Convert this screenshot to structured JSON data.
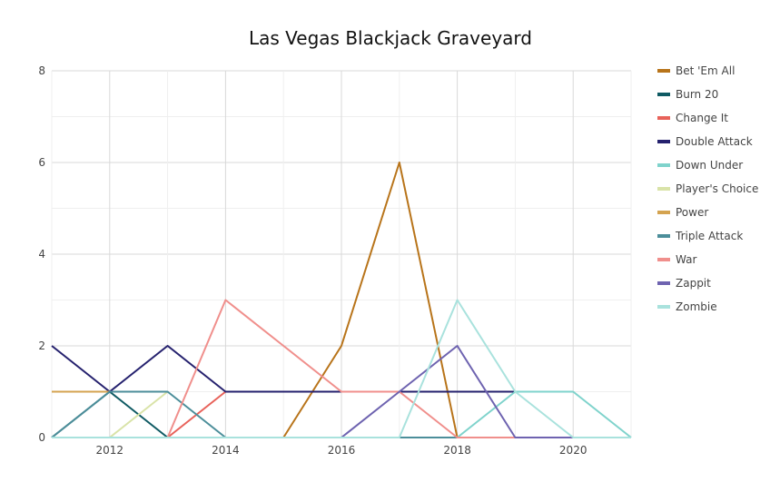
{
  "chart_data": {
    "type": "line",
    "title": "Las Vegas Blackjack Graveyard",
    "xlabel": "",
    "ylabel": "",
    "xlim": [
      2011,
      2021
    ],
    "ylim": [
      0,
      8
    ],
    "x_ticks": [
      "2012",
      "2014",
      "2016",
      "2018",
      "2020"
    ],
    "y_ticks": [
      "0",
      "2",
      "4",
      "6",
      "8"
    ],
    "grid": true,
    "legend_position": "right",
    "x": [
      2011,
      2012,
      2013,
      2014,
      2015,
      2016,
      2017,
      2018,
      2019,
      2020,
      2021
    ],
    "series": [
      {
        "name": "Bet 'Em All",
        "color": "#B8741A",
        "values": [
          null,
          null,
          null,
          null,
          0,
          2,
          6,
          0,
          null,
          null,
          null
        ]
      },
      {
        "name": "Burn 20",
        "color": "#0F5A63",
        "values": [
          0,
          1,
          0,
          null,
          null,
          null,
          null,
          null,
          null,
          null,
          null
        ]
      },
      {
        "name": "Change It",
        "color": "#E8625A",
        "values": [
          null,
          null,
          0,
          1,
          null,
          null,
          null,
          null,
          null,
          null,
          null
        ]
      },
      {
        "name": "Double Attack",
        "color": "#25216E",
        "values": [
          2,
          1,
          2,
          1,
          1,
          1,
          1,
          1,
          1,
          null,
          null
        ]
      },
      {
        "name": "Down Under",
        "color": "#7FD3CC",
        "values": [
          null,
          null,
          null,
          null,
          null,
          null,
          null,
          0,
          1,
          1,
          0
        ]
      },
      {
        "name": "Player's Choice",
        "color": "#D9E3A8",
        "values": [
          null,
          0,
          1,
          null,
          null,
          null,
          null,
          null,
          null,
          null,
          null
        ]
      },
      {
        "name": "Power",
        "color": "#D4A350",
        "values": [
          1,
          1,
          null,
          null,
          null,
          null,
          null,
          null,
          null,
          null,
          null
        ]
      },
      {
        "name": "Triple Attack",
        "color": "#4C8E9A",
        "values": [
          0,
          1,
          1,
          0,
          0,
          0,
          0,
          0,
          null,
          null,
          null
        ]
      },
      {
        "name": "War",
        "color": "#F08F8C",
        "values": [
          null,
          null,
          0,
          3,
          2,
          1,
          1,
          0,
          0,
          null,
          null
        ]
      },
      {
        "name": "Zappit",
        "color": "#6E63B0",
        "values": [
          null,
          null,
          null,
          null,
          null,
          0,
          1,
          2,
          0,
          0,
          null
        ]
      },
      {
        "name": "Zombie",
        "color": "#A9E2DD",
        "values": [
          0,
          0,
          0,
          0,
          0,
          0,
          0,
          3,
          1,
          0,
          0
        ]
      }
    ]
  }
}
